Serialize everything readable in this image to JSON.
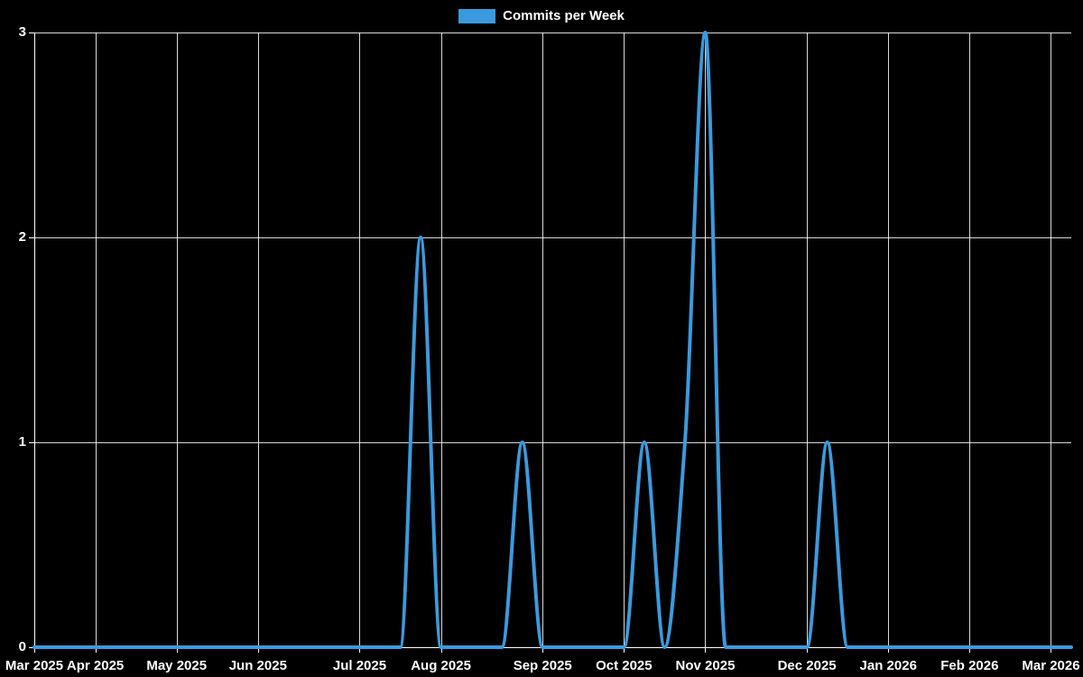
{
  "legend": {
    "label": "Commits per Week"
  },
  "chart_data": {
    "type": "line",
    "title": "Commits per Week",
    "legend": "Commits per Week",
    "legend_position": "top-center",
    "grid": true,
    "ylim": [
      0,
      3
    ],
    "y_ticks": [
      0,
      1,
      2,
      3
    ],
    "y_tick_labels": [
      "0",
      "1",
      "2",
      "3"
    ],
    "x_tick_labels": [
      "Mar 2025",
      "Apr 2025",
      "May 2025",
      "Jun 2025",
      "Jul 2025",
      "Aug 2025",
      "Sep 2025",
      "Oct 2025",
      "Nov 2025",
      "Dec 2025",
      "Jan 2026",
      "Feb 2026",
      "Mar 2026"
    ],
    "x_tick_indices": [
      0,
      3,
      7,
      11,
      16,
      20,
      25,
      29,
      33,
      38,
      42,
      46,
      50
    ],
    "num_points": 52,
    "series": [
      {
        "name": "Commits per Week",
        "values": [
          0,
          0,
          0,
          0,
          0,
          0,
          0,
          0,
          0,
          0,
          0,
          0,
          0,
          0,
          0,
          0,
          0,
          0,
          0,
          2,
          0,
          0,
          0,
          0,
          1,
          0,
          0,
          0,
          0,
          0,
          1,
          0,
          1,
          3,
          0,
          0,
          0,
          0,
          0,
          1,
          0,
          0,
          0,
          0,
          0,
          0,
          0,
          0,
          0,
          0,
          0,
          0
        ]
      }
    ],
    "colors": {
      "line": "#3b9ade",
      "background": "#000000",
      "grid": "#ffffff",
      "text": "#ffffff"
    }
  }
}
